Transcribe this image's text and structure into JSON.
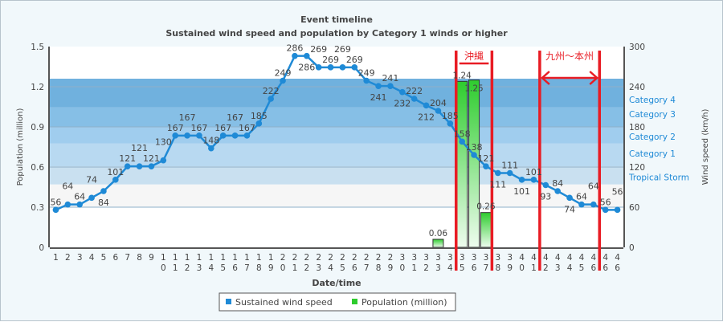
{
  "chart_data": {
    "type": "bar+line",
    "title": "Event timeline",
    "subtitle": "Sustained wind speed and population by Category 1 winds or higher",
    "xlabel": "Date/time",
    "ylabel_left": "Population (million)",
    "ylabel_right": "Wind speed (km/h)",
    "ylim_left": [
      0,
      1.5
    ],
    "yticks_left": [
      "0",
      "0.3",
      "0.6",
      "0.9",
      "1.2",
      "1.5"
    ],
    "ylim_right": [
      0,
      300
    ],
    "yticks_right": [
      "0",
      "60",
      "120",
      "180",
      "240",
      "300"
    ],
    "grid": true,
    "legend_position": "bottom",
    "categories": [
      "1",
      "2",
      "3",
      "4",
      "5",
      "6",
      "7",
      "8",
      "9",
      "10",
      "11",
      "12",
      "13",
      "14",
      "15",
      "16",
      "17",
      "18",
      "19",
      "20",
      "21",
      "22",
      "23",
      "24",
      "25",
      "26",
      "27",
      "28",
      "29",
      "30",
      "31",
      "32",
      "33",
      "34",
      "35",
      "36",
      "37",
      "38",
      "39",
      "40",
      "41",
      "42",
      "43",
      "44",
      "45",
      "46",
      "46",
      "46"
    ],
    "series": [
      {
        "name": "Sustained wind speed",
        "type": "line",
        "axis": "right",
        "color": "#1f8ad6",
        "values": [
          56,
          64,
          64,
          74,
          84,
          101,
          121,
          121,
          121,
          130,
          167,
          167,
          167,
          148,
          167,
          167,
          167,
          185,
          222,
          249,
          286,
          286,
          269,
          269,
          269,
          269,
          249,
          241,
          241,
          232,
          222,
          212,
          204,
          185,
          158,
          138,
          121,
          111,
          111,
          101,
          101,
          93,
          84,
          74,
          64,
          64,
          56,
          56
        ]
      },
      {
        "name": "Population (million)",
        "type": "bar",
        "axis": "left",
        "color": "#2ecc2e",
        "values": [
          null,
          null,
          null,
          null,
          null,
          null,
          null,
          null,
          null,
          null,
          null,
          null,
          null,
          null,
          null,
          null,
          null,
          null,
          null,
          null,
          null,
          null,
          null,
          null,
          null,
          null,
          null,
          null,
          null,
          null,
          null,
          null,
          0.06,
          null,
          1.24,
          1.25,
          0.26,
          null,
          null,
          null,
          null,
          null,
          null,
          null,
          null,
          null,
          null,
          null
        ]
      }
    ],
    "plot_bands": [
      {
        "label": "",
        "from": 60,
        "to": 94,
        "color": "#f6f6f6"
      },
      {
        "label": "Tropical Storm",
        "from": 94,
        "to": 121,
        "color": "#c9e0f0"
      },
      {
        "label": "Category 1",
        "from": 121,
        "to": 155,
        "color": "#b8d9f1"
      },
      {
        "label": "Category 2",
        "from": 155,
        "to": 180,
        "color": "#a0cdee"
      },
      {
        "label": "Category 3",
        "from": 180,
        "to": 209,
        "color": "#86bfe6"
      },
      {
        "label": "Category 4",
        "from": 209,
        "to": 252,
        "color": "#70b1de"
      }
    ],
    "band_label_color": "#1f8ad6",
    "annotations": [
      {
        "text": "沖縄",
        "from_category_index": 34,
        "to_category_index": 37,
        "color": "#e81c24"
      },
      {
        "text": "九州～本州",
        "from_category_index": 41,
        "to_category_index": 46,
        "color": "#e81c24"
      }
    ]
  }
}
